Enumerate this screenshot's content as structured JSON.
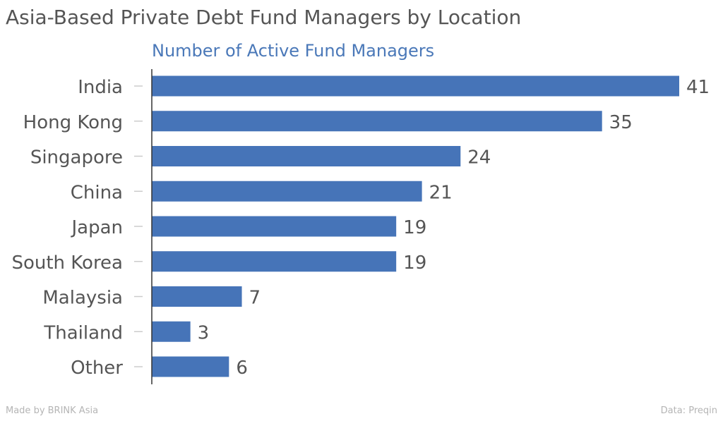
{
  "chart_data": {
    "type": "bar",
    "orientation": "horizontal",
    "title": "Asia-Based Private Debt Fund Managers by Location",
    "subtitle": "Number of Active Fund Managers",
    "categories": [
      "India",
      "Hong Kong",
      "Singapore",
      "China",
      "Japan",
      "South Korea",
      "Malaysia",
      "Thailand",
      "Other"
    ],
    "values": [
      41,
      35,
      24,
      21,
      19,
      19,
      7,
      3,
      6
    ],
    "xlim": [
      0,
      41
    ],
    "bar_color": "#4674b8",
    "data_labels": true,
    "grid": false
  },
  "footer": {
    "credit": "Made by BRINK Asia",
    "source": "Data: Preqin"
  }
}
